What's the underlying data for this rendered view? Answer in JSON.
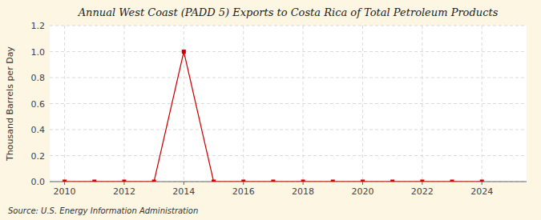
{
  "chart_data": {
    "type": "line",
    "title": "Annual West Coast (PADD 5) Exports to Costa Rica of Total Petroleum Products",
    "y_label": "Thousand Barrels per Day",
    "source": "Source: U.S. Energy Information Administration",
    "x": [
      2010,
      2011,
      2012,
      2013,
      2014,
      2015,
      2016,
      2017,
      2018,
      2019,
      2020,
      2021,
      2022,
      2023,
      2024
    ],
    "values": [
      0.0,
      0.0,
      0.0,
      0.0,
      1.0,
      0.0,
      0.0,
      0.0,
      0.0,
      0.0,
      0.0,
      0.0,
      0.0,
      0.0,
      0.0
    ],
    "xlim": [
      2009.5,
      2025.5
    ],
    "ylim": [
      0.0,
      1.2
    ],
    "xticks": [
      2010,
      2012,
      2014,
      2016,
      2018,
      2020,
      2022,
      2024
    ],
    "yticks": [
      {
        "value": 0.0,
        "label": "0.0"
      },
      0.2,
      0.4,
      0.6,
      0.8,
      {
        "value": 1.0,
        "label": "1.0"
      },
      1.2
    ],
    "color": "#cc0000",
    "marker": "square",
    "grid": true
  }
}
